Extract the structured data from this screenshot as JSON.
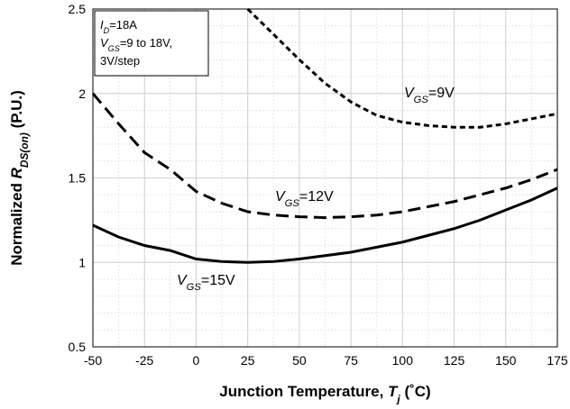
{
  "chart_data": {
    "type": "line",
    "ylabel": {
      "text": "Normalized ",
      "symbol": "R",
      "subscript": "DS(on)",
      "unit": " (P.U.)"
    },
    "xlabel": {
      "text": "Junction Temperature, ",
      "symbol": "T",
      "subscript": "j",
      "unit": " (˚C)"
    },
    "info": [
      {
        "symbol": "I",
        "subscript": "D",
        "text": "=18A"
      },
      {
        "symbol": "V",
        "subscript": "GS",
        "text": "=9 to 18V,"
      },
      {
        "text": "3V/step"
      }
    ],
    "x": [
      -50,
      -37.5,
      -25,
      -12.5,
      0,
      12.5,
      25,
      37.5,
      50,
      62.5,
      75,
      87.5,
      100,
      112.5,
      125,
      137.5,
      150,
      162.5,
      175
    ],
    "series": [
      {
        "label": {
          "symbol": "V",
          "subscript": "GS",
          "text": "=9V"
        },
        "color": "#000000",
        "dash": "6,4",
        "values": [
          null,
          null,
          null,
          null,
          null,
          null,
          2.5,
          2.35,
          2.2,
          2.06,
          1.95,
          1.87,
          1.83,
          1.81,
          1.8,
          1.8,
          1.82,
          1.85,
          1.88
        ]
      },
      {
        "label": {
          "symbol": "V",
          "subscript": "GS",
          "text": "=12V"
        },
        "color": "#000000",
        "dash": "14,7",
        "values": [
          2.0,
          1.82,
          1.65,
          1.55,
          1.42,
          1.35,
          1.3,
          1.28,
          1.27,
          1.265,
          1.27,
          1.28,
          1.3,
          1.33,
          1.36,
          1.4,
          1.44,
          1.49,
          1.55
        ]
      },
      {
        "label": {
          "symbol": "V",
          "subscript": "GS",
          "text": "=15V"
        },
        "color": "#000000",
        "dash": "none",
        "values": [
          1.22,
          1.15,
          1.1,
          1.07,
          1.02,
          1.005,
          1.0,
          1.005,
          1.02,
          1.04,
          1.06,
          1.09,
          1.12,
          1.16,
          1.2,
          1.25,
          1.31,
          1.37,
          1.44
        ]
      }
    ],
    "xlim": [
      -50,
      175
    ],
    "xticks": [
      -50,
      -25,
      0,
      25,
      50,
      75,
      100,
      125,
      150,
      175
    ],
    "ylim": [
      0.5,
      2.5
    ],
    "yticks": [
      0.5,
      1,
      1.5,
      2,
      2.5
    ],
    "grid": true
  }
}
